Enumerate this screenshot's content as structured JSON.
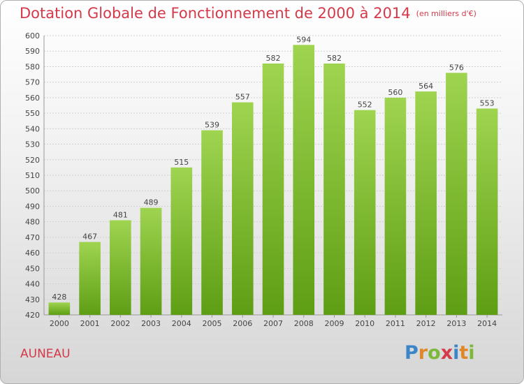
{
  "header": {
    "title": "Dotation Globale de Fonctionnement de 2000 à 2014",
    "unit": "(en milliers d'€)"
  },
  "commune": "AUNEAU",
  "logo": {
    "text": "Proxiti",
    "letters": [
      {
        "ch": "P",
        "color": "#3a86c8"
      },
      {
        "ch": "r",
        "color": "#e0872a"
      },
      {
        "ch": "o",
        "color": "#7cb83a"
      },
      {
        "ch": "x",
        "color": "#d43a4a"
      },
      {
        "ch": "i",
        "color": "#3a86c8"
      },
      {
        "ch": "t",
        "color": "#e0872a"
      },
      {
        "ch": "i",
        "color": "#7cb83a"
      }
    ]
  },
  "chart_data": {
    "type": "bar",
    "title": "Dotation Globale de Fonctionnement de 2000 à 2014",
    "subtitle": "(en milliers d'€)",
    "xlabel": "",
    "ylabel": "",
    "categories": [
      "2000",
      "2001",
      "2002",
      "2003",
      "2004",
      "2005",
      "2006",
      "2007",
      "2008",
      "2009",
      "2010",
      "2011",
      "2012",
      "2013",
      "2014"
    ],
    "values": [
      428,
      467,
      481,
      489,
      515,
      539,
      557,
      582,
      594,
      582,
      552,
      560,
      564,
      576,
      553
    ],
    "ylim": [
      420,
      600
    ],
    "yticks": [
      420,
      430,
      440,
      450,
      460,
      470,
      480,
      490,
      500,
      510,
      520,
      530,
      540,
      550,
      560,
      570,
      580,
      590,
      600
    ],
    "grid": true,
    "bar_color": "#8cc63f"
  }
}
